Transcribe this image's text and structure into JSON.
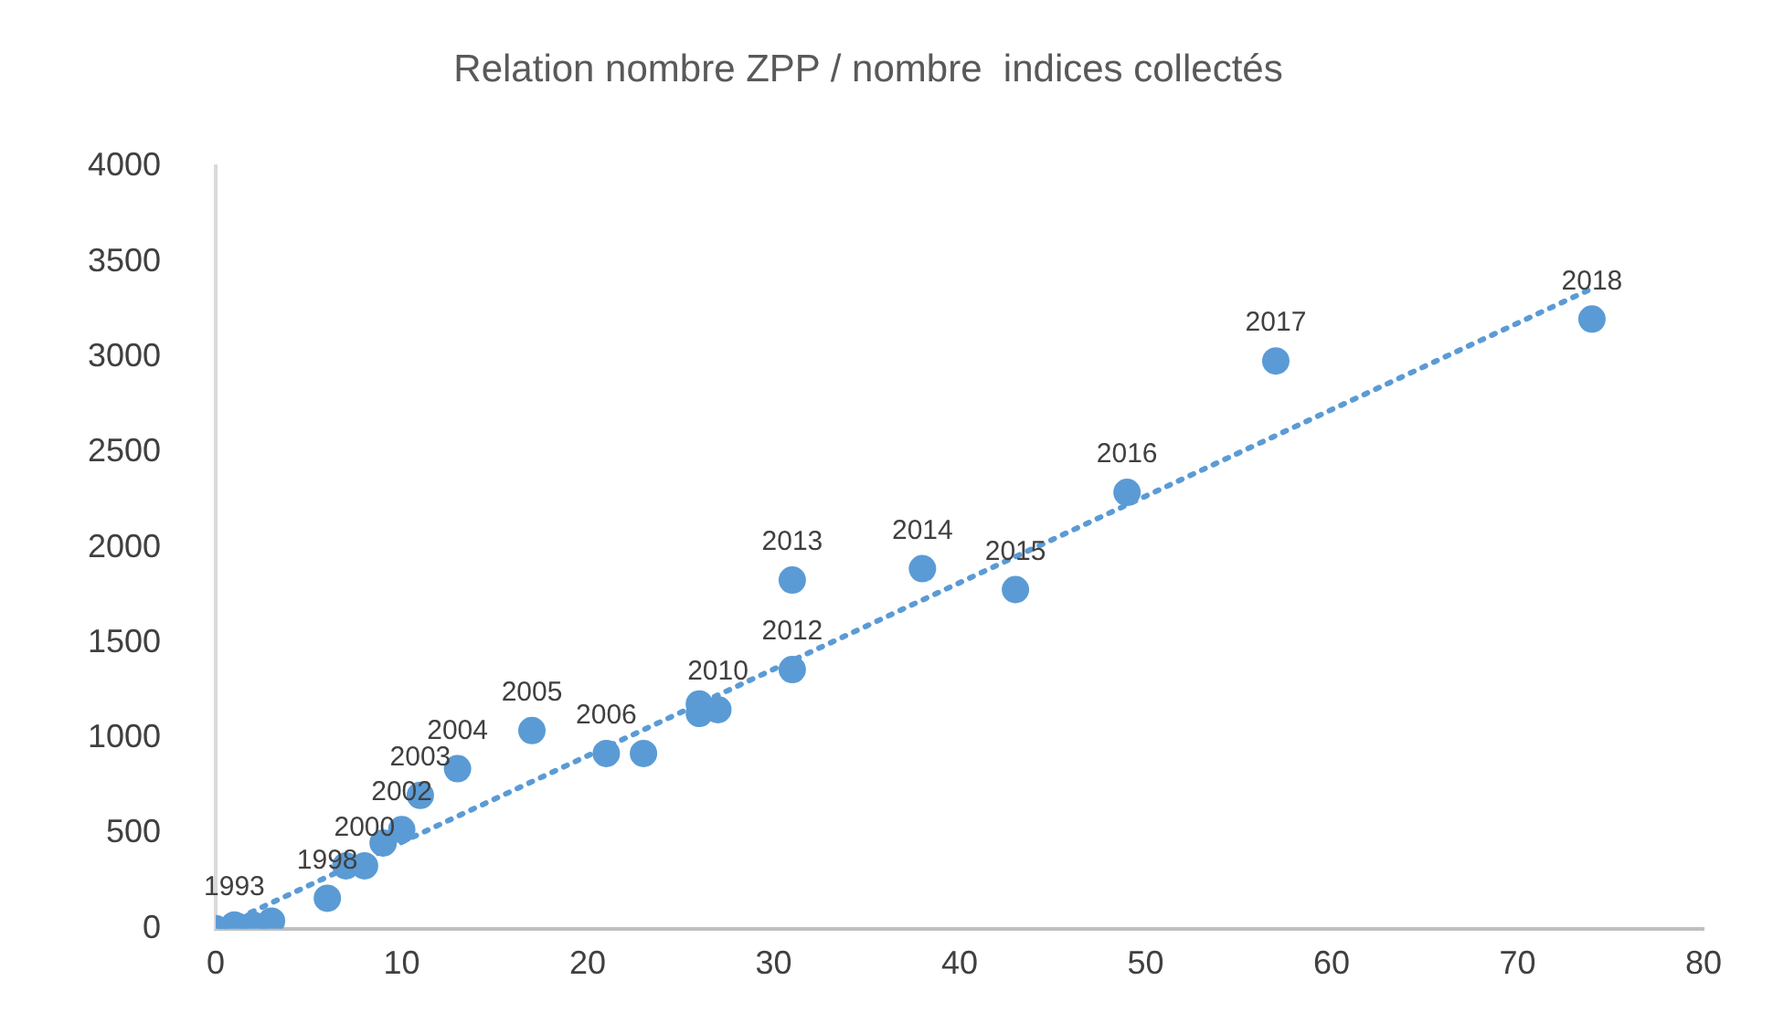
{
  "chart_data": {
    "type": "scatter",
    "title": "Relation nombre ZPP / nombre  indices collectés",
    "marker": "circle",
    "grid": false,
    "legend": false,
    "xlim": [
      0,
      80
    ],
    "xticks": [
      0,
      10,
      20,
      30,
      40,
      50,
      60,
      70,
      80
    ],
    "ylim": [
      0,
      4000
    ],
    "yticks": [
      0,
      500,
      1000,
      1500,
      2000,
      2500,
      3000,
      3500,
      4000
    ],
    "series": [
      {
        "color": "#5b9bd5",
        "x": [
          0,
          1,
          2,
          3,
          6,
          7,
          8,
          9,
          10,
          11,
          13,
          17,
          21,
          23,
          26,
          26,
          27,
          31,
          31,
          38,
          43,
          49,
          57,
          74
        ],
        "values": [
          0,
          20,
          20,
          40,
          160,
          330,
          330,
          450,
          520,
          700,
          840,
          1040,
          920,
          920,
          1180,
          1130,
          1150,
          1360,
          1830,
          1890,
          1780,
          2290,
          2980,
          3200
        ]
      },
      {
        "type": "line",
        "color": "#5b9bd5",
        "line_style": "dotted",
        "marker": "none",
        "x": [
          0,
          74
        ],
        "values": [
          0,
          3360
        ]
      }
    ],
    "annotations": [
      {
        "text": "1993",
        "x": 1,
        "y": 20
      },
      {
        "text": "1998",
        "x": 6,
        "y": 160
      },
      {
        "text": "2000",
        "x": 8,
        "y": 330
      },
      {
        "text": "2002",
        "x": 10,
        "y": 520
      },
      {
        "text": "2003",
        "x": 11,
        "y": 700
      },
      {
        "text": "2004",
        "x": 13,
        "y": 840
      },
      {
        "text": "2005",
        "x": 17,
        "y": 1040
      },
      {
        "text": "2006",
        "x": 21,
        "y": 920
      },
      {
        "text": "2010",
        "x": 27,
        "y": 1150
      },
      {
        "text": "2012",
        "x": 31,
        "y": 1360
      },
      {
        "text": "2013",
        "x": 31,
        "y": 1830
      },
      {
        "text": "2014",
        "x": 38,
        "y": 1890
      },
      {
        "text": "2015",
        "x": 43,
        "y": 1780
      },
      {
        "text": "2016",
        "x": 49,
        "y": 2290
      },
      {
        "text": "2017",
        "x": 57,
        "y": 2980
      },
      {
        "text": "2018",
        "x": 74,
        "y": 3200
      }
    ]
  }
}
